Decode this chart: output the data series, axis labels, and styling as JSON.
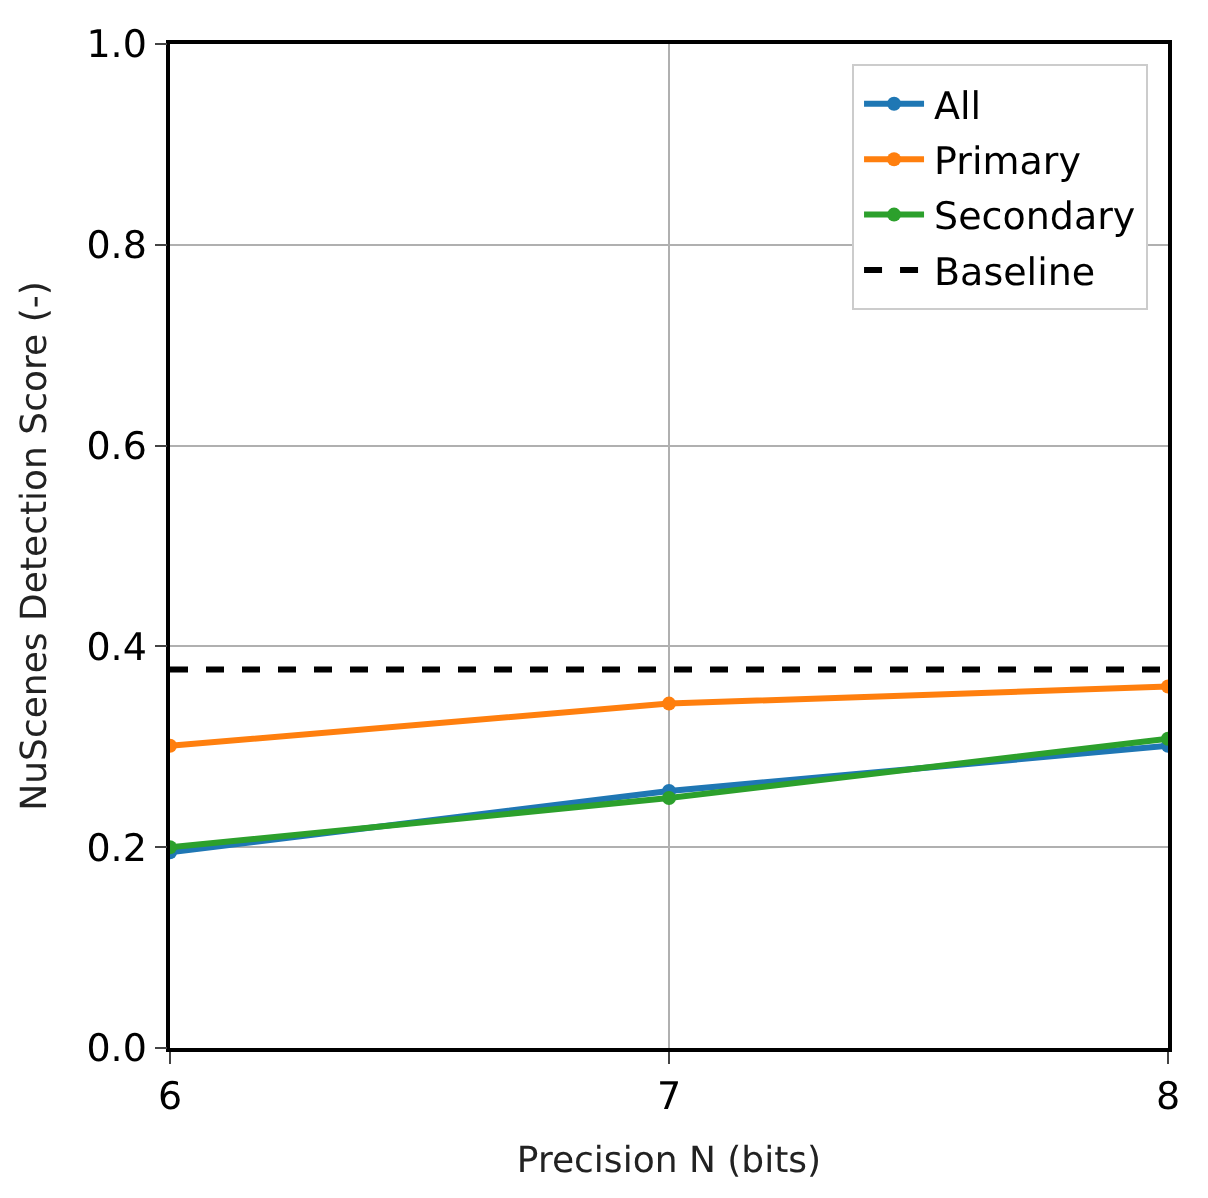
{
  "chart_data": {
    "type": "line",
    "xlabel": "Precision N (bits)",
    "ylabel": "NuScenes Detection Score (-)",
    "x": [
      6,
      7,
      8
    ],
    "series": [
      {
        "name": "All",
        "color": "#1f77b4",
        "values": [
          0.195,
          0.256,
          0.301
        ]
      },
      {
        "name": "Primary",
        "color": "#ff7f0e",
        "values": [
          0.301,
          0.343,
          0.36
        ]
      },
      {
        "name": "Secondary",
        "color": "#2ca02c",
        "values": [
          0.2,
          0.249,
          0.308
        ]
      }
    ],
    "ref_lines": [
      {
        "axis": "y",
        "value": 0.377,
        "label": "Baseline",
        "color": "#000000",
        "line_style": "dashed"
      }
    ],
    "xlim": [
      6,
      8
    ],
    "xticks": [
      6,
      7,
      8
    ],
    "ylim": [
      0,
      1
    ],
    "yticks": [
      {
        "value": 0,
        "label": "0.0"
      },
      0.2,
      0.4,
      0.6,
      0.8,
      {
        "value": 1,
        "label": "1.0"
      }
    ],
    "grid": true,
    "legend": "top right",
    "marker": "circle",
    "line_style": "solid"
  }
}
